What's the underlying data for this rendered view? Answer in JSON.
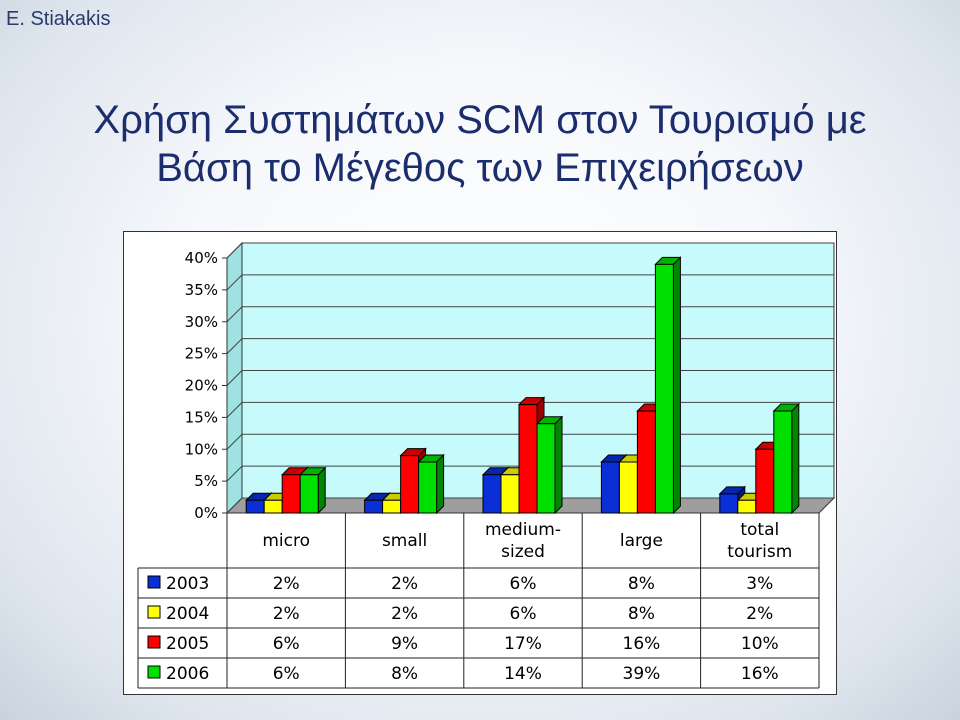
{
  "header": {
    "author": "E. Stiakakis"
  },
  "slide": {
    "title_line1": "Χρήση Συστημάτων SCM στον Τουρισμό με",
    "title_line2": "Βάση το Μέγεθος των Επιχειρήσεων"
  },
  "chart_data": {
    "type": "bar",
    "categories": [
      "micro",
      "small",
      "medium-\nsized",
      "large",
      "total\ntourism"
    ],
    "y_ticks": [
      "0%",
      "5%",
      "10%",
      "15%",
      "20%",
      "25%",
      "30%",
      "35%",
      "40%"
    ],
    "ylim": [
      0,
      40
    ],
    "grid": true,
    "legend": "table below chart",
    "series": [
      {
        "name": "2003",
        "color": "#0a2fd6",
        "values": [
          2,
          2,
          6,
          8,
          3
        ],
        "labels": [
          "2%",
          "2%",
          "6%",
          "8%",
          "3%"
        ]
      },
      {
        "name": "2004",
        "color": "#ffff00",
        "values": [
          2,
          2,
          6,
          8,
          2
        ],
        "labels": [
          "2%",
          "2%",
          "6%",
          "8%",
          "2%"
        ]
      },
      {
        "name": "2005",
        "color": "#ff0000",
        "values": [
          6,
          9,
          17,
          16,
          10
        ],
        "labels": [
          "6%",
          "9%",
          "17%",
          "16%",
          "10%"
        ]
      },
      {
        "name": "2006",
        "color": "#00e000",
        "values": [
          6,
          8,
          14,
          39,
          16
        ],
        "labels": [
          "6%",
          "8%",
          "14%",
          "39%",
          "16%"
        ]
      }
    ]
  }
}
